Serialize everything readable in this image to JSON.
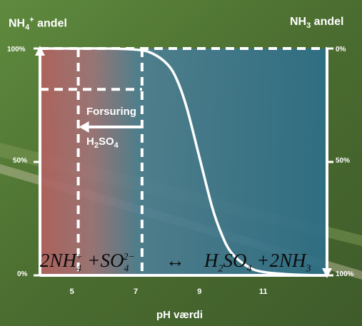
{
  "header": {
    "left_label": {
      "base": "NH",
      "sub": "4",
      "sup": "+",
      "rest": " andel"
    },
    "right_label": {
      "base": "NH",
      "sub": "3",
      "rest": " andel"
    }
  },
  "axes": {
    "xlabel": "pH værdi",
    "left_ticks": [
      "100%",
      "50%",
      "0%"
    ],
    "right_ticks": [
      "0%",
      "50%",
      "100%"
    ]
  },
  "annotation": {
    "arrow_label": "Forsuring",
    "acid": {
      "base": "H",
      "sub1": "2",
      "mid": "SO",
      "sub2": "4"
    }
  },
  "equation": {
    "left": "2NH",
    "left_sub": "4",
    "left_sup": "+",
    "plus1": " +SO",
    "so_sub": "4",
    "so_sup": "2−",
    "arrow": "↔",
    "right": "H",
    "right_sub1": "2",
    "right_mid": "SO",
    "right_sub2": "4",
    "plus2": " +2NH",
    "right_sub3": "3"
  },
  "colors": {
    "acid_zone": "#b06a66",
    "alkaline_zone": "#2f6f86",
    "lines": "#ffffff"
  },
  "chart_data": {
    "type": "line",
    "x_ticks": [
      5,
      7,
      9,
      11
    ],
    "xlim": [
      4,
      13
    ],
    "ylim": [
      0,
      100
    ],
    "series": [
      {
        "x": [
          4,
          5,
          6,
          7,
          7.5,
          8,
          8.3,
          8.6,
          9,
          9.4,
          9.7,
          10,
          10.5,
          11,
          12,
          13
        ],
        "y": [
          100,
          100,
          100,
          99.5,
          98,
          93,
          86,
          74,
          52,
          30,
          18,
          10,
          4,
          1.5,
          0.3,
          0
        ]
      }
    ],
    "markers": {
      "vertical_dashed": [
        5.2,
        7.2
      ],
      "horizontal_dashed_y": 82,
      "arrow": {
        "from_x": 7.2,
        "to_x": 5.2
      }
    }
  }
}
